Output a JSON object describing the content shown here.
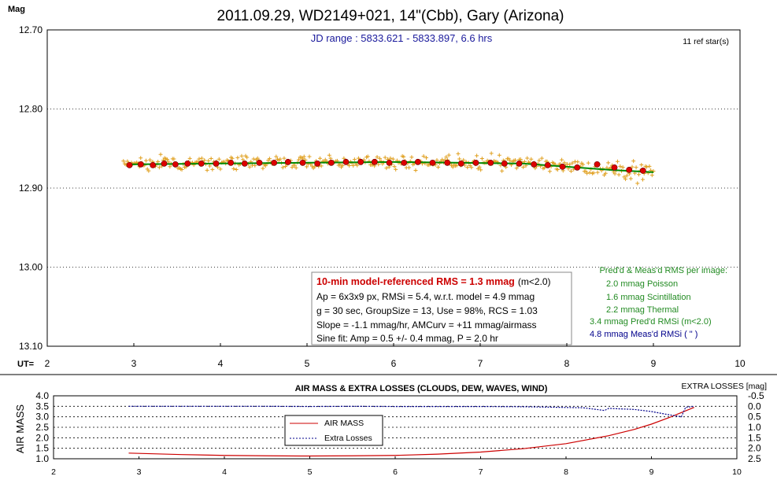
{
  "chart_data": [
    {
      "type": "scatter",
      "title": "2011.09.29, WD2149+021, 14\"(Cbb), Gary (Arizona)",
      "subtitle": "JD range : 5833.621 - 5833.897, 6.6 hrs",
      "ref_stars": "11 ref star(s)",
      "ylabel": "Mag",
      "xlabel": "UT=",
      "xlim": [
        2,
        10
      ],
      "ylim": [
        12.7,
        13.1
      ],
      "y_inverted": true,
      "x_ticks": [
        "2",
        "3",
        "4",
        "5",
        "6",
        "7",
        "8",
        "9",
        "10"
      ],
      "y_ticks": [
        "12.70",
        "12.80",
        "12.90",
        "13.00",
        "13.10"
      ],
      "grid": "horizontal dotted",
      "series": [
        {
          "name": "",
          "style": "orange plus markers (individual images)",
          "color": "#e0a020",
          "x_range": [
            2.88,
            9.0
          ],
          "y_center": 12.872,
          "scatter_sd": 0.006
        },
        {
          "name": "",
          "style": "red dots (group averages)",
          "color": "#dd0000",
          "x": [
            2.95,
            3.08,
            3.22,
            3.35,
            3.48,
            3.62,
            3.78,
            3.95,
            4.12,
            4.28,
            4.45,
            4.62,
            4.78,
            4.95,
            5.12,
            5.28,
            5.45,
            5.62,
            5.78,
            5.95,
            6.12,
            6.28,
            6.45,
            6.62,
            6.78,
            6.95,
            7.12,
            7.28,
            7.45,
            7.62,
            7.78,
            7.95,
            8.12,
            8.35,
            8.55,
            8.72,
            8.88
          ],
          "y": [
            12.871,
            12.87,
            12.871,
            12.869,
            12.87,
            12.869,
            12.869,
            12.869,
            12.868,
            12.869,
            12.868,
            12.868,
            12.867,
            12.868,
            12.869,
            12.868,
            12.867,
            12.867,
            12.867,
            12.868,
            12.868,
            12.867,
            12.868,
            12.868,
            12.869,
            12.868,
            12.868,
            12.869,
            12.869,
            12.87,
            12.871,
            12.873,
            12.874,
            12.87,
            12.874,
            12.877,
            12.878
          ]
        },
        {
          "name": "",
          "style": "green model line",
          "color": "#008800",
          "x": [
            2.95,
            6.0,
            7.5,
            8.0,
            8.5,
            9.0
          ],
          "y": [
            12.87,
            12.867,
            12.869,
            12.873,
            12.877,
            12.88
          ]
        }
      ],
      "annotation_box": {
        "line1_red": "10-min model-referenced RMS = 1.3 mmag",
        "line1_suffix": "(m<2.0)",
        "lines": [
          "Ap = 6x3x9 px, RMSi = 5.4, w.r.t. model = 4.9 mmag",
          "g = 30 sec, GroupSize = 13, Use = 98%, RCS = 1.03",
          "Slope = -1.1 mmag/hr, AMCurv = +11 mmag/airmass",
          "Sine fit: Amp = 0.5 +/- 0.4 mmag, P = 2.0 hr"
        ]
      },
      "rms_panel": {
        "header": "Pred'd & Meas'd RMS per image:",
        "lines": [
          {
            "text": "2.0 mmag Poisson",
            "color": "#228B22"
          },
          {
            "text": "1.6 mmag Scintillation",
            "color": "#228B22"
          },
          {
            "text": "2.2 mmag Thermal",
            "color": "#228B22"
          },
          {
            "text": "3.4 mmag Pred'd  RMSi (m<2.0)",
            "color": "#228B22"
          },
          {
            "text": "4.8 mmag Meas'd RMSi (    \"    )",
            "color": "#00008B"
          }
        ]
      }
    },
    {
      "type": "line",
      "title": "AIR MASS & EXTRA LOSSES (CLOUDS, DEW, WAVES, WIND)",
      "ylabel": "AIR MASS",
      "y2label": "EXTRA LOSSES [mag]",
      "xlim": [
        2,
        10
      ],
      "ylim": [
        1.0,
        4.0
      ],
      "y2lim": [
        -0.5,
        2.5
      ],
      "y2_inverted": true,
      "x_ticks": [
        "2",
        "3",
        "4",
        "5",
        "6",
        "7",
        "8",
        "9",
        "10"
      ],
      "y_ticks": [
        "1.0",
        "1.5",
        "2.0",
        "2.5",
        "3.0",
        "3.5",
        "4.0"
      ],
      "y2_ticks": [
        "-0.5",
        "0.0",
        "0.5",
        "1.0",
        "1.5",
        "2.0",
        "2.5"
      ],
      "legend": [
        "AIR MASS",
        "Extra Losses"
      ],
      "series": [
        {
          "name": "AIR MASS",
          "color": "#cc0000",
          "x": [
            2.88,
            3.5,
            4.0,
            4.5,
            5.0,
            5.5,
            6.0,
            6.5,
            7.0,
            7.5,
            8.0,
            8.5,
            8.8,
            9.0,
            9.2,
            9.35,
            9.5
          ],
          "y": [
            1.27,
            1.2,
            1.16,
            1.14,
            1.13,
            1.14,
            1.16,
            1.22,
            1.32,
            1.48,
            1.72,
            2.1,
            2.4,
            2.65,
            2.95,
            3.2,
            3.45
          ]
        },
        {
          "name": "Extra Losses",
          "color": "#00008B",
          "x": [
            2.88,
            3.5,
            4.0,
            4.5,
            5.0,
            5.5,
            6.0,
            6.5,
            7.0,
            7.5,
            7.8,
            8.2,
            8.45,
            8.5,
            8.8,
            9.0,
            9.2,
            9.35,
            9.4,
            9.5
          ],
          "y": [
            0.0,
            0.0,
            0.0,
            0.0,
            0.01,
            0.0,
            0.01,
            0.01,
            0.01,
            0.02,
            0.04,
            0.07,
            0.2,
            0.1,
            0.15,
            0.25,
            0.4,
            0.5,
            0.05,
            0.0
          ]
        }
      ]
    }
  ]
}
